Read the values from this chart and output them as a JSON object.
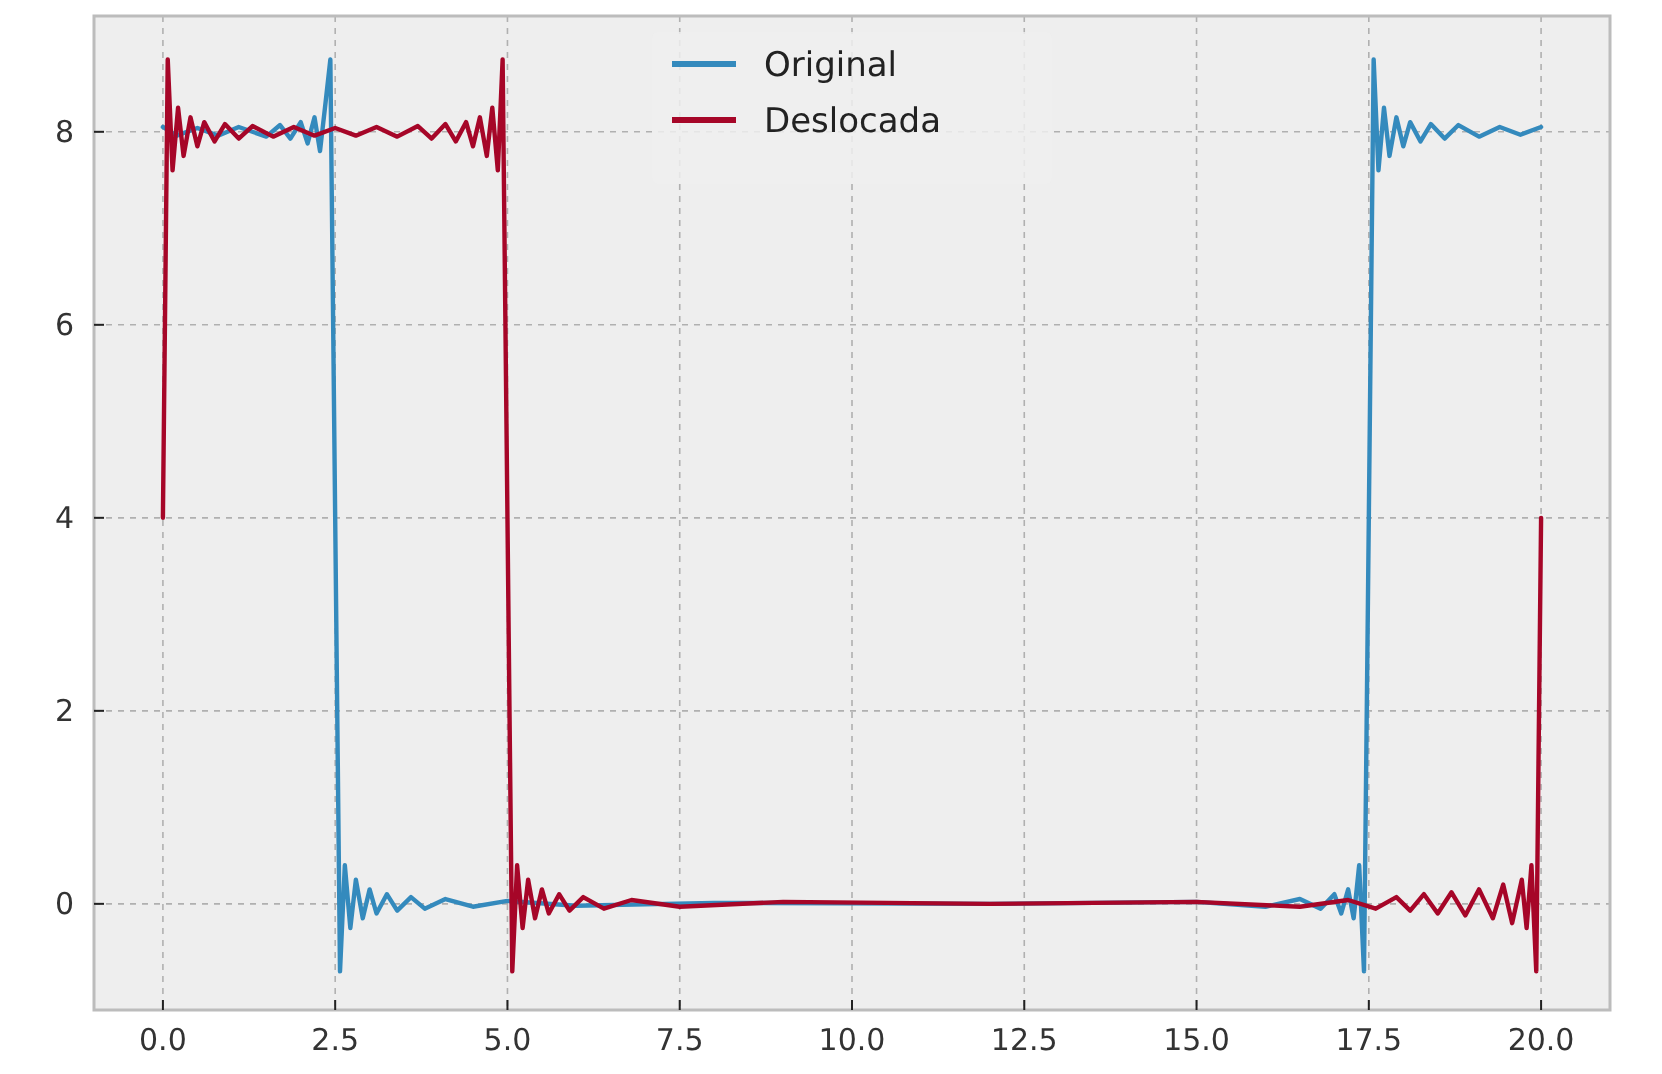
{
  "chart_data": {
    "type": "line",
    "xlim": [
      -1,
      21
    ],
    "ylim": [
      -1.1,
      9.2
    ],
    "xticks": [
      {
        "value": 0,
        "label": "0.0"
      },
      {
        "value": 2.5,
        "label": "2.5"
      },
      {
        "value": 5,
        "label": "5.0"
      },
      {
        "value": 7.5,
        "label": "7.5"
      },
      {
        "value": 10,
        "label": "10.0"
      },
      {
        "value": 12.5,
        "label": "12.5"
      },
      {
        "value": 15,
        "label": "15.0"
      },
      {
        "value": 17.5,
        "label": "17.5"
      },
      {
        "value": 20,
        "label": "20.0"
      }
    ],
    "yticks": [
      0,
      2,
      4,
      6,
      8
    ],
    "grid": true,
    "legend": "top",
    "line_style": "solid",
    "marker": "none",
    "series": [
      {
        "name": "Original",
        "color": "#348abd",
        "x": [
          0,
          0.2,
          0.5,
          0.8,
          1.1,
          1.5,
          1.7,
          1.85,
          2.0,
          2.1,
          2.2,
          2.28,
          2.36,
          2.43,
          2.5,
          2.57,
          2.64,
          2.72,
          2.8,
          2.9,
          3.0,
          3.1,
          3.25,
          3.4,
          3.6,
          3.8,
          4.1,
          4.5,
          5,
          6,
          8,
          12,
          15,
          16,
          16.5,
          16.8,
          17,
          17.1,
          17.2,
          17.28,
          17.36,
          17.43,
          17.5,
          17.57,
          17.64,
          17.72,
          17.8,
          17.9,
          18,
          18.1,
          18.25,
          18.4,
          18.6,
          18.8,
          19.1,
          19.4,
          19.7,
          20
        ],
        "values": [
          8.05,
          7.96,
          8.04,
          7.96,
          8.05,
          7.95,
          8.07,
          7.93,
          8.1,
          7.88,
          8.15,
          7.8,
          8.3,
          8.75,
          4,
          -0.7,
          0.4,
          -0.25,
          0.25,
          -0.15,
          0.15,
          -0.1,
          0.1,
          -0.07,
          0.07,
          -0.05,
          0.05,
          -0.03,
          0.03,
          -0.02,
          0.01,
          0,
          0.02,
          -0.03,
          0.05,
          -0.05,
          0.1,
          -0.1,
          0.15,
          -0.15,
          0.4,
          -0.7,
          4,
          8.75,
          7.6,
          8.25,
          7.75,
          8.15,
          7.85,
          8.1,
          7.9,
          8.08,
          7.93,
          8.07,
          7.95,
          8.05,
          7.97,
          8.05
        ]
      },
      {
        "name": "Deslocada",
        "color": "#a60628",
        "x": [
          0,
          0.07,
          0.14,
          0.22,
          0.3,
          0.4,
          0.5,
          0.6,
          0.75,
          0.9,
          1.1,
          1.3,
          1.6,
          1.9,
          2.2,
          2.5,
          2.8,
          3.1,
          3.4,
          3.7,
          3.9,
          4.1,
          4.25,
          4.4,
          4.5,
          4.6,
          4.7,
          4.78,
          4.86,
          4.93,
          5,
          5.07,
          5.14,
          5.22,
          5.3,
          5.4,
          5.5,
          5.6,
          5.75,
          5.9,
          6.1,
          6.4,
          6.8,
          7.5,
          9,
          12,
          15,
          16.5,
          17.2,
          17.6,
          17.9,
          18.1,
          18.3,
          18.5,
          18.7,
          18.9,
          19.1,
          19.3,
          19.45,
          19.58,
          19.72,
          19.79,
          19.86,
          19.93,
          20
        ],
        "values": [
          4,
          8.75,
          7.6,
          8.25,
          7.75,
          8.15,
          7.85,
          8.1,
          7.9,
          8.08,
          7.93,
          8.06,
          7.95,
          8.05,
          7.96,
          8.04,
          7.96,
          8.05,
          7.95,
          8.06,
          7.93,
          8.08,
          7.9,
          8.1,
          7.85,
          8.15,
          7.75,
          8.25,
          7.6,
          8.75,
          4,
          -0.7,
          0.4,
          -0.25,
          0.25,
          -0.15,
          0.15,
          -0.1,
          0.1,
          -0.07,
          0.07,
          -0.05,
          0.04,
          -0.03,
          0.02,
          0,
          0.02,
          -0.03,
          0.04,
          -0.05,
          0.07,
          -0.07,
          0.1,
          -0.1,
          0.12,
          -0.12,
          0.15,
          -0.15,
          0.2,
          -0.2,
          0.25,
          -0.25,
          0.4,
          -0.7,
          4
        ]
      }
    ]
  }
}
